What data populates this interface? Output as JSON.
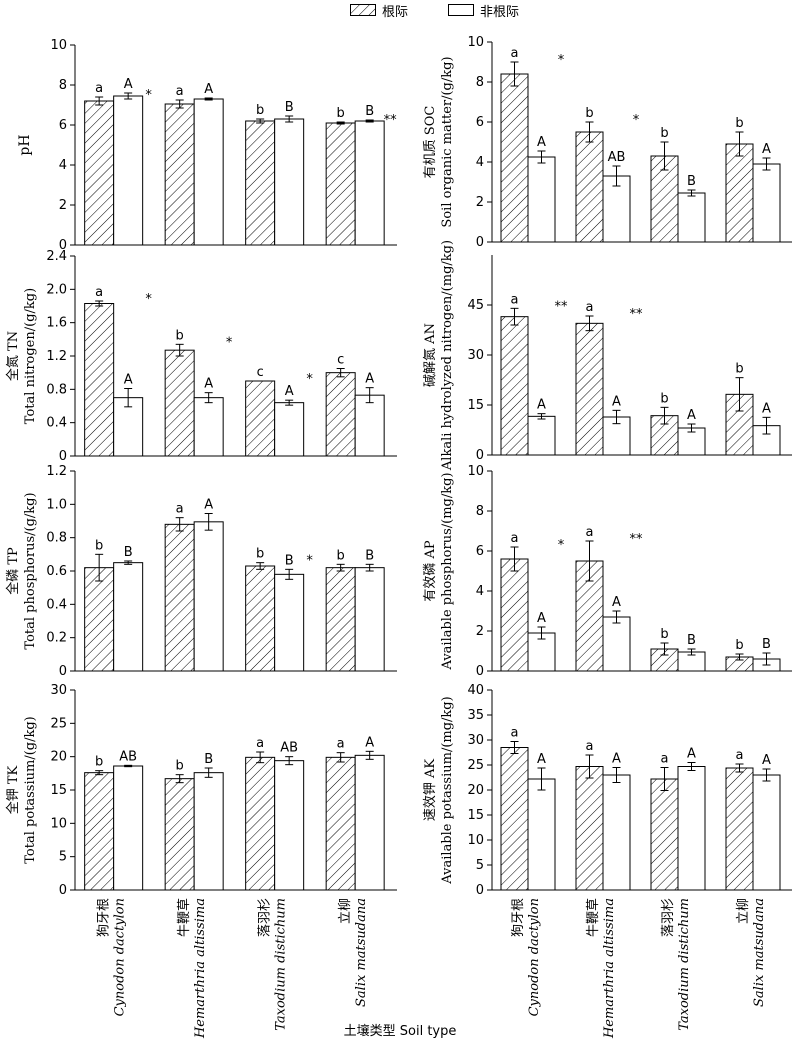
{
  "legend": [
    {
      "label": "根际",
      "pattern": "hatch"
    },
    {
      "label": "非根际",
      "pattern": "solid"
    }
  ],
  "x_axis_title": "土壤类型 Soil type",
  "species": [
    {
      "cn": "狗牙根",
      "latin": "Cynodon dactylon"
    },
    {
      "cn": "牛鞭草",
      "latin": "Hemarthria altissima"
    },
    {
      "cn": "落羽杉",
      "latin": "Taxodium distichum"
    },
    {
      "cn": "立柳",
      "latin": "Salix matsudana"
    }
  ],
  "chart_data": [
    {
      "type": "bar",
      "ylabel": [
        "pH"
      ],
      "ylim": [
        0,
        10
      ],
      "yticks": [
        "0",
        "2",
        "4",
        "6",
        "8",
        "10"
      ],
      "series": [
        {
          "name": "根际",
          "values": [
            7.2,
            7.05,
            6.2,
            6.1
          ],
          "errors": [
            0.2,
            0.2,
            0.1,
            0.05
          ],
          "letters": [
            "a",
            "a",
            "b",
            "b"
          ]
        },
        {
          "name": "非根际",
          "values": [
            7.45,
            7.3,
            6.3,
            6.2
          ],
          "errors": [
            0.15,
            0.05,
            0.15,
            0.05
          ],
          "letters": [
            "A",
            "A",
            "B",
            "B"
          ]
        }
      ],
      "sig": [
        "*",
        "",
        "",
        "**"
      ]
    },
    {
      "type": "bar",
      "ylabel": [
        "有机质 SOC",
        "Soil organic matter/(g/kg)"
      ],
      "ylim": [
        0,
        10
      ],
      "yticks": [
        "0",
        "2",
        "4",
        "6",
        "8",
        "10"
      ],
      "series": [
        {
          "name": "根际",
          "values": [
            8.4,
            5.5,
            4.3,
            4.9
          ],
          "errors": [
            0.6,
            0.5,
            0.7,
            0.6
          ],
          "letters": [
            "a",
            "b",
            "b",
            "b"
          ]
        },
        {
          "name": "非根际",
          "values": [
            4.25,
            3.3,
            2.45,
            3.9
          ],
          "errors": [
            0.3,
            0.5,
            0.15,
            0.3
          ],
          "letters": [
            "A",
            "AB",
            "B",
            "A"
          ]
        }
      ],
      "sig": [
        "*",
        "*",
        "",
        ""
      ]
    },
    {
      "type": "bar",
      "ylabel": [
        "全氮 TN",
        "Total nitrogen/(g/kg)"
      ],
      "ylim": [
        0,
        2.4
      ],
      "yticks": [
        "0",
        "0.4",
        "0.8",
        "1.2",
        "1.6",
        "2.0",
        "2.4"
      ],
      "series": [
        {
          "name": "根际",
          "values": [
            1.83,
            1.27,
            0.9,
            1.0
          ],
          "errors": [
            0.03,
            0.07,
            0.0,
            0.05
          ],
          "letters": [
            "a",
            "b",
            "c",
            "c"
          ]
        },
        {
          "name": "非根际",
          "values": [
            0.7,
            0.7,
            0.64,
            0.73
          ],
          "errors": [
            0.11,
            0.06,
            0.03,
            0.09
          ],
          "letters": [
            "A",
            "A",
            "A",
            "A"
          ]
        }
      ],
      "sig": [
        "*",
        "*",
        "*",
        ""
      ]
    },
    {
      "type": "bar",
      "ylabel": [
        "碱解氮 AN",
        "Alkali hydrolyzed nitrogen/(mg/kg)"
      ],
      "ylim": [
        0,
        60
      ],
      "yticks": [
        "0",
        "15",
        "30",
        "45"
      ],
      "series": [
        {
          "name": "根际",
          "values": [
            41.5,
            39.5,
            11.8,
            18.2
          ],
          "errors": [
            2.5,
            2.2,
            2.5,
            5.0
          ],
          "letters": [
            "a",
            "a",
            "b",
            "b"
          ]
        },
        {
          "name": "非根际",
          "values": [
            11.6,
            11.4,
            8.1,
            8.8
          ],
          "errors": [
            0.8,
            2.0,
            1.2,
            2.5
          ],
          "letters": [
            "A",
            "A",
            "A",
            "A"
          ]
        }
      ],
      "sig": [
        "**",
        "**",
        "",
        ""
      ]
    },
    {
      "type": "bar",
      "ylabel": [
        "全磷 TP",
        "Total phosphorus/(g/kg)"
      ],
      "ylim": [
        0,
        1.2
      ],
      "yticks": [
        "0",
        "0.2",
        "0.4",
        "0.6",
        "0.8",
        "1.0",
        "1.2"
      ],
      "series": [
        {
          "name": "根际",
          "values": [
            0.62,
            0.88,
            0.63,
            0.62
          ],
          "errors": [
            0.08,
            0.04,
            0.02,
            0.02
          ],
          "letters": [
            "b",
            "a",
            "b",
            "b"
          ]
        },
        {
          "name": "非根际",
          "values": [
            0.65,
            0.895,
            0.58,
            0.62
          ],
          "errors": [
            0.01,
            0.05,
            0.03,
            0.02
          ],
          "letters": [
            "B",
            "A",
            "B",
            "B"
          ]
        }
      ],
      "sig": [
        "",
        "",
        "*",
        ""
      ]
    },
    {
      "type": "bar",
      "ylabel": [
        "有效磷 AP",
        "Available phosphorus/(mg/kg)"
      ],
      "ylim": [
        0,
        10
      ],
      "yticks": [
        "0",
        "2",
        "4",
        "6",
        "8",
        "10"
      ],
      "series": [
        {
          "name": "根际",
          "values": [
            5.6,
            5.5,
            1.1,
            0.7
          ],
          "errors": [
            0.6,
            1.0,
            0.3,
            0.15
          ],
          "letters": [
            "a",
            "a",
            "b",
            "b"
          ]
        },
        {
          "name": "非根际",
          "values": [
            1.9,
            2.7,
            0.95,
            0.6
          ],
          "errors": [
            0.3,
            0.3,
            0.15,
            0.3
          ],
          "letters": [
            "A",
            "A",
            "B",
            "B"
          ]
        }
      ],
      "sig": [
        "*",
        "**",
        "",
        ""
      ]
    },
    {
      "type": "bar",
      "ylabel": [
        "全钾 TK",
        "Total potassium/(g/kg)"
      ],
      "ylim": [
        0,
        30
      ],
      "yticks": [
        "0",
        "5",
        "10",
        "15",
        "20",
        "25",
        "30"
      ],
      "series": [
        {
          "name": "根际",
          "values": [
            17.6,
            16.7,
            19.9,
            19.9
          ],
          "errors": [
            0.3,
            0.6,
            0.8,
            0.7
          ],
          "letters": [
            "b",
            "b",
            "a",
            "a"
          ]
        },
        {
          "name": "非根际",
          "values": [
            18.6,
            17.6,
            19.4,
            20.2
          ],
          "errors": [
            0.1,
            0.7,
            0.6,
            0.6
          ],
          "letters": [
            "AB",
            "B",
            "AB",
            "A"
          ]
        }
      ],
      "sig": [
        "",
        "",
        "",
        ""
      ]
    },
    {
      "type": "bar",
      "ylabel": [
        "速效钾 AK",
        "Available potassium/(mg/kg)"
      ],
      "ylim": [
        0,
        40
      ],
      "yticks": [
        "0",
        "5",
        "10",
        "15",
        "20",
        "25",
        "30",
        "35",
        "40"
      ],
      "series": [
        {
          "name": "根际",
          "values": [
            28.5,
            24.7,
            22.2,
            24.4
          ],
          "errors": [
            1.2,
            2.3,
            2.3,
            0.8
          ],
          "letters": [
            "a",
            "a",
            "a",
            "a"
          ]
        },
        {
          "name": "非根际",
          "values": [
            22.2,
            23.0,
            24.7,
            23.0
          ],
          "errors": [
            2.2,
            1.5,
            0.8,
            1.2
          ],
          "letters": [
            "A",
            "A",
            "A",
            "A"
          ]
        }
      ],
      "sig": [
        "",
        "",
        "",
        ""
      ]
    }
  ]
}
